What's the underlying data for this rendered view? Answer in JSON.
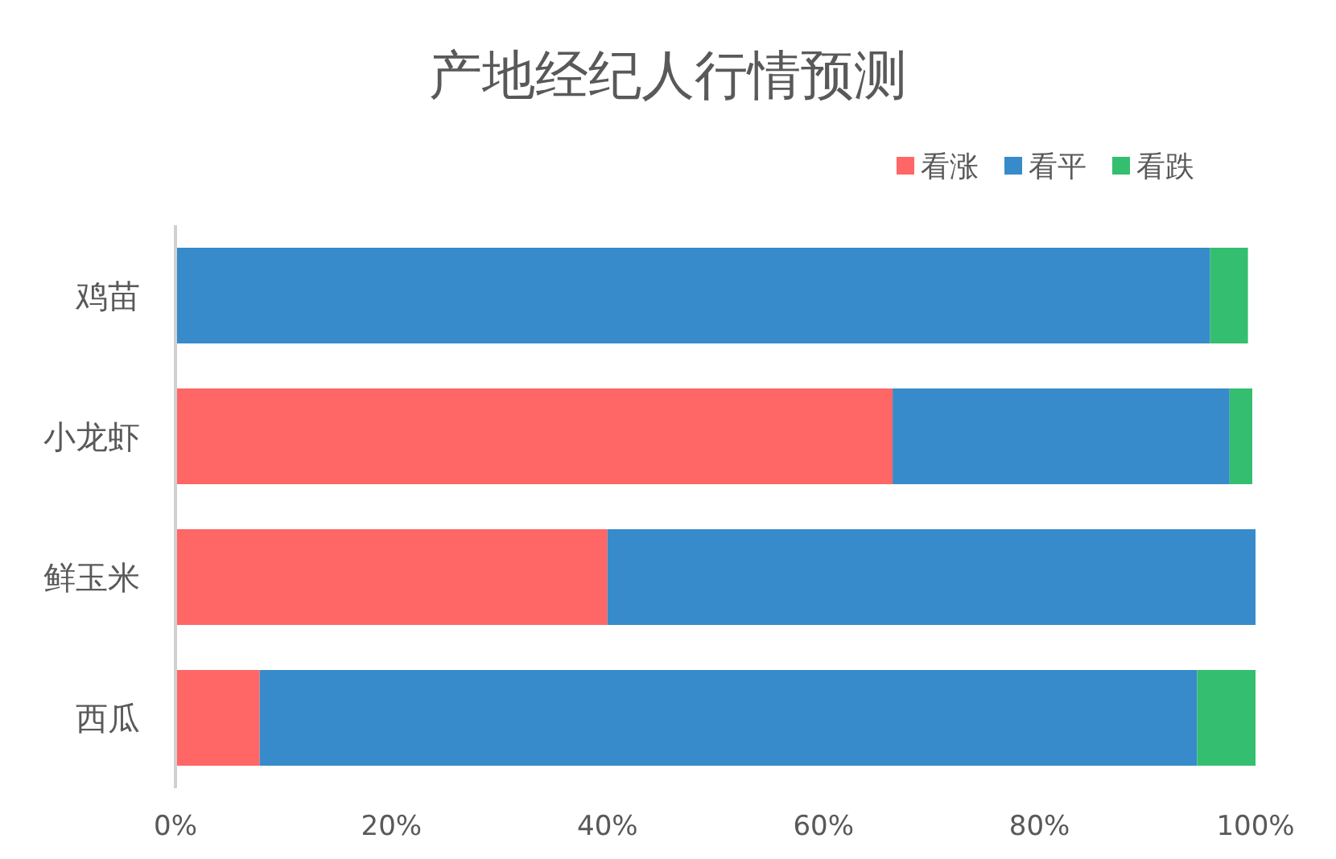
{
  "chart_data": {
    "type": "bar",
    "orientation": "horizontal",
    "stacked": true,
    "title": "产地经纪人行情预测",
    "categories": [
      "鸡苗",
      "小龙虾",
      "鲜玉米",
      "西瓜"
    ],
    "series": [
      {
        "name": "看涨",
        "color": "#ff6666",
        "values": [
          0,
          66.4,
          40,
          7.8
        ]
      },
      {
        "name": "看平",
        "color": "#378bca",
        "values": [
          95.8,
          31.2,
          60,
          86.8
        ]
      },
      {
        "name": "看跌",
        "color": "#33bf6f",
        "values": [
          3.5,
          2.1,
          0,
          5.4
        ]
      }
    ],
    "xlim": [
      0,
      100
    ],
    "xticks": [
      {
        "value": 0,
        "label": "0%"
      },
      {
        "value": 20,
        "label": "20%"
      },
      {
        "value": 40,
        "label": "40%"
      },
      {
        "value": 60,
        "label": "60%"
      },
      {
        "value": 80,
        "label": "80%"
      },
      {
        "value": 100,
        "label": "100%"
      }
    ],
    "legend": "top right",
    "grid": false
  }
}
